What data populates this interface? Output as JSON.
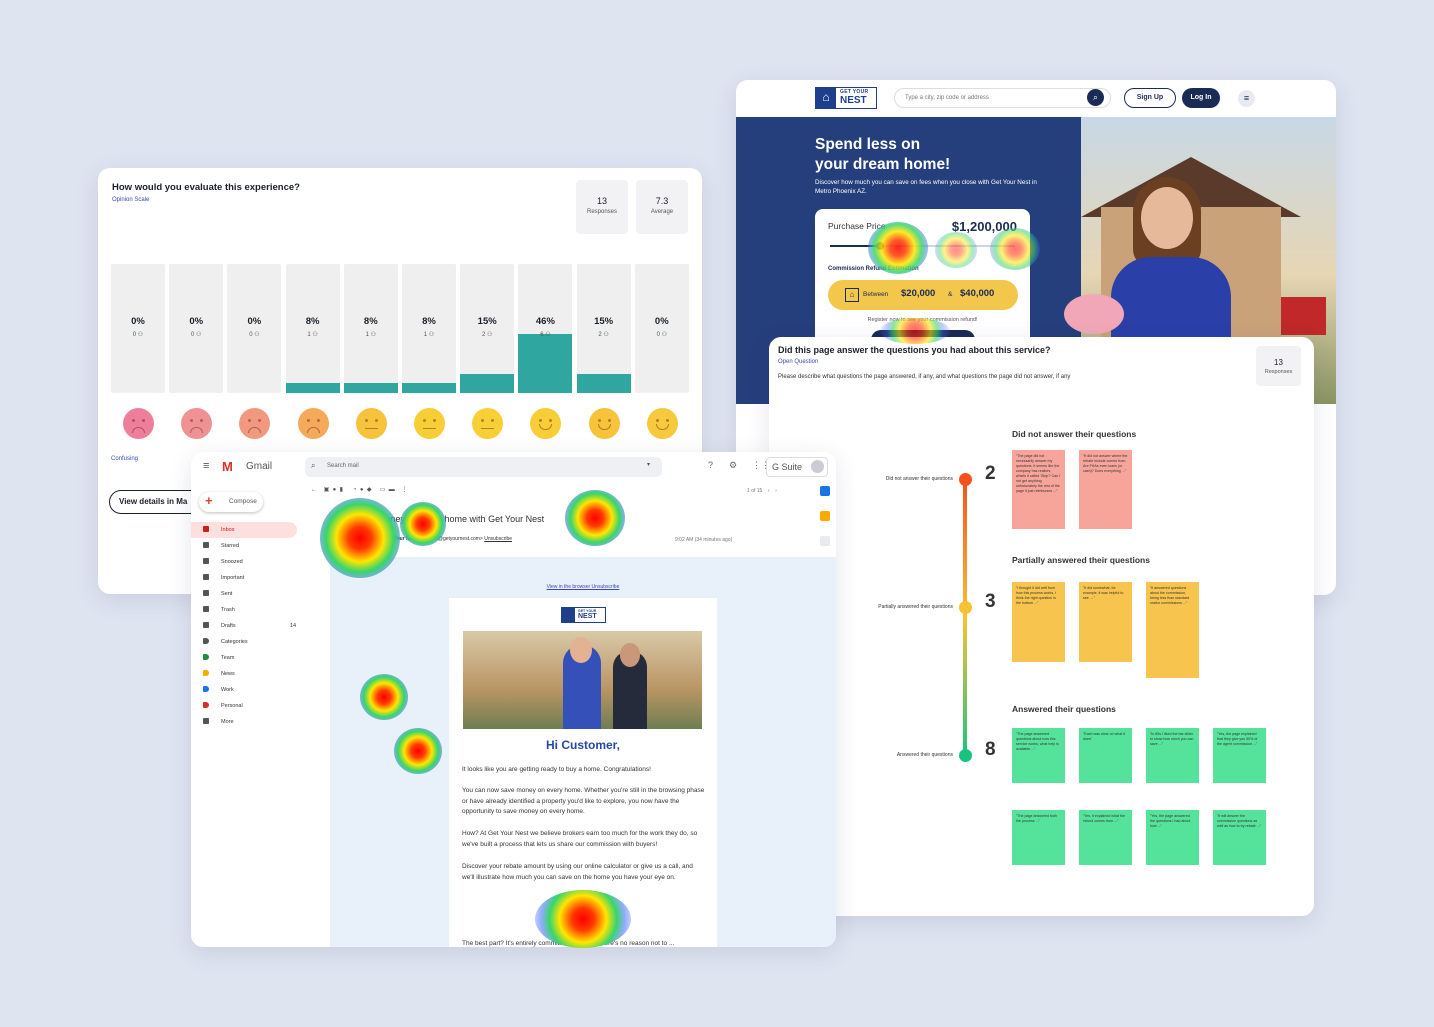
{
  "opinion": {
    "title": "How would you evaluate this experience?",
    "subtitle": "Opinion Scale",
    "responses": {
      "value": "13",
      "label": "Responses"
    },
    "average": {
      "value": "7.3",
      "label": "Average"
    },
    "bars": [
      {
        "pct": "0%",
        "count": "0 ⚇",
        "fraction": 0
      },
      {
        "pct": "0%",
        "count": "0 ⚇",
        "fraction": 0
      },
      {
        "pct": "0%",
        "count": "0 ⚇",
        "fraction": 0
      },
      {
        "pct": "8%",
        "count": "1 ⚇",
        "fraction": 0.08
      },
      {
        "pct": "8%",
        "count": "1 ⚇",
        "fraction": 0.08
      },
      {
        "pct": "8%",
        "count": "1 ⚇",
        "fraction": 0.08
      },
      {
        "pct": "15%",
        "count": "2 ⚇",
        "fraction": 0.15
      },
      {
        "pct": "46%",
        "count": "6 ⚇",
        "fraction": 0.46
      },
      {
        "pct": "15%",
        "count": "2 ⚇",
        "fraction": 0.15
      },
      {
        "pct": "0%",
        "count": "0 ⚇",
        "fraction": 0
      }
    ],
    "face_colors": [
      "#ee7f9a",
      "#f09294",
      "#f1987e",
      "#f5a95a",
      "#f7c23c",
      "#f8ce36",
      "#f8cf36",
      "#f8cd36",
      "#f6c33a",
      "#f6ca3c"
    ],
    "left_label": "Confusing",
    "details_button": "View details in Ma"
  },
  "website": {
    "logo": {
      "line1": "GET YOUR",
      "line2": "NEST",
      "icon": "house-icon"
    },
    "search_placeholder": "Type a city, zip code or address",
    "signup": "Sign Up",
    "login": "Log In",
    "hero_title_line1": "Spend less on",
    "hero_title_line2": "your dream home!",
    "hero_sub": "Discover how much you can save on fees when you close with Get Your Nest in Metro Phoenix AZ.",
    "calc": {
      "price_label": "Purchase Price",
      "price_value": "$1,200,000",
      "refund_label": "Commission Refund Estimation",
      "between": "Between",
      "low": "$20,000",
      "amp": "&",
      "high": "$40,000",
      "register": "Register now to see your commission refund!"
    },
    "accent": "#243f7c"
  },
  "openq": {
    "title": "Did this page answer the questions you had about this service?",
    "subtitle": "Open Question",
    "description": "Please describe what questions the page answered, if any, and what questions the page did not answer, if any",
    "responses": {
      "value": "13",
      "label": "Responses"
    },
    "groups": [
      {
        "label": "Did not answer their questions",
        "heading": "Did not answer their questions",
        "count": "2",
        "color": "#f4511e",
        "notes": [
          "\"The page did not necessarily answer my questions. It seems like the company has realtors, what's it called 'Skip'? Can I not get anything unfortunately the rest of the page it just reimburses ...\"",
          "\"It did not answer where the rebate include comes from. Are FHAs even loans (or cash)? Does everything ...\""
        ]
      },
      {
        "label": "Partially answered their questions",
        "heading": "Partially answered their questions",
        "count": "3",
        "color": "#f9c234",
        "notes": [
          "\"I thought it did well from how this process works, I think the right question is the bottom ...\"",
          "\"It did somewhat, for example, it was helpful to see ... \"",
          "\"It answered questions about the commission, being less than standard realtor commissions ...\""
        ]
      },
      {
        "label": "Answered their questions",
        "heading": "Answered their questions",
        "count": "8",
        "color": "#19c37d",
        "notes": [
          "\"The page answered questions about how this service works, what help is available ...\"",
          "\"Each was clear on what it does\"",
          "\"In 60s I liked the bar slider to show how much you can save ...\"",
          "\"Yes, the page explained that they give you 50% of the agent commission ...\"",
          "\"The page answered both the process ...\"",
          "\"Yes, it explained what the refund comes from ...\"",
          "\"Yes, the page answered the questions I had about how ...\"",
          "\"It will answer the commission questions as well as how to try rebate ...\""
        ]
      }
    ]
  },
  "gmail": {
    "app_name": "Gmail",
    "search_placeholder": "Search mail",
    "compose": "Compose",
    "suite": "G Suite",
    "folders": [
      {
        "label": "Inbox",
        "count": "",
        "color": "#c5221f",
        "icon": "inbox-icon"
      },
      {
        "label": "Starred",
        "count": "",
        "color": "#555",
        "icon": "star-icon"
      },
      {
        "label": "Snoozed",
        "count": "",
        "color": "#555",
        "icon": "clock-icon"
      },
      {
        "label": "Important",
        "count": "",
        "color": "#555",
        "icon": "important-icon"
      },
      {
        "label": "Sent",
        "count": "",
        "color": "#555",
        "icon": "send-icon"
      },
      {
        "label": "Trash",
        "count": "",
        "color": "#555",
        "icon": "trash-icon"
      },
      {
        "label": "Drafts",
        "count": "14",
        "color": "#555",
        "icon": "draft-icon"
      },
      {
        "label": "Categories",
        "count": "",
        "color": "#555",
        "icon": "label-icon"
      },
      {
        "label": "Team",
        "count": "",
        "color": "#1e8e3e",
        "icon": "label-icon"
      },
      {
        "label": "News",
        "count": "",
        "color": "#f9ab00",
        "icon": "label-icon"
      },
      {
        "label": "Work",
        "count": "",
        "color": "#1a73e8",
        "icon": "label-icon"
      },
      {
        "label": "Personal",
        "count": "",
        "color": "#d93025",
        "icon": "label-icon"
      },
      {
        "label": "More",
        "count": "",
        "color": "#555",
        "icon": "chevron-down-icon"
      }
    ],
    "pager": "1 of 15",
    "subject": "Save money on every home with Get Your Nest",
    "from_name": "Get Your Nest",
    "from_email": "<support@getyournest.com>",
    "unsubscribe": "Unsubscribe",
    "time": "9:02 AM (34 minutes ago)",
    "links": "View in the browser  Unsubscribe",
    "mail": {
      "logo_line1": "GET YOUR",
      "logo_line2": "NEST",
      "greeting": "Hi Customer,",
      "p1": "It looks like you are getting ready to buy a home. Congratulations!",
      "p2": "You can now save money on every home. Whether you're still in the browsing phase or have already identified a property you'd like to explore, you now have the opportunity to save money on every home.",
      "p3": "How? At Get Your Nest we believe brokers earn too much for the work they do, so we've built a process that lets us share our commission with buyers!",
      "p4": "Discover your rebate amount by using our online calculator or give us a call, and we'll illustrate how much you can save on the home you have your eye on.",
      "p5": "The best part? It's entirely commitment free, so there's no reason not to ..."
    }
  }
}
